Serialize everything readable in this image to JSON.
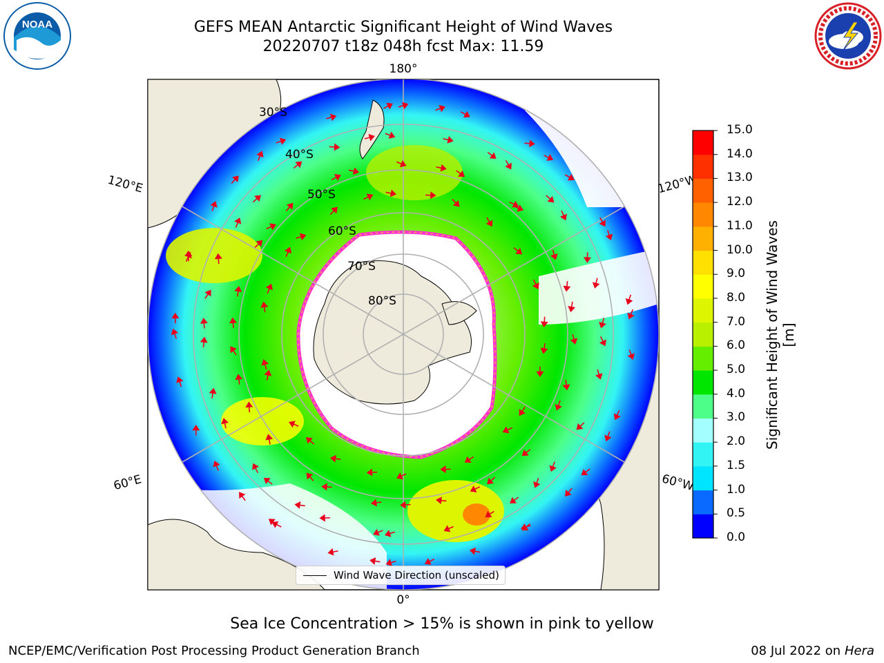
{
  "title": {
    "line1": "GEFS MEAN Antarctic Significant Height of Wind Waves",
    "line2": "20220707 t18z 048h fcst   Max: 11.59"
  },
  "map": {
    "projection": "south-polar-stereographic",
    "longitude_labels": {
      "top": "180°",
      "bottom": "0°",
      "upper_left": "120°E",
      "upper_right": "120°W",
      "lower_left": "60°E",
      "lower_right": "60°W"
    },
    "latitude_labels": [
      "30°S",
      "40°S",
      "50°S",
      "60°S",
      "70°S",
      "80°S"
    ],
    "legend_label": "Wind Wave Direction (unscaled)",
    "arrow_color": "#e8001c",
    "land_color": "#efebdc",
    "ice_edge_colors": [
      "#ff33cc",
      "#ffb347"
    ]
  },
  "colorbar": {
    "label": "Significant Height of Wind Waves [m]",
    "ticks": [
      "0.0",
      "0.5",
      "1.0",
      "1.5",
      "2.0",
      "3.0",
      "4.0",
      "5.0",
      "6.0",
      "7.0",
      "8.0",
      "9.0",
      "10.0",
      "11.0",
      "12.0",
      "13.0",
      "14.0",
      "15.0"
    ],
    "colors": [
      "#0000ff",
      "#0a6aff",
      "#00e5ff",
      "#33f4f4",
      "#a3ffff",
      "#4dff88",
      "#00e600",
      "#66ee00",
      "#b8f000",
      "#ddf500",
      "#ffff00",
      "#ffe000",
      "#ffb000",
      "#ff8800",
      "#ff6000",
      "#ff3000",
      "#ff0000"
    ]
  },
  "notes": {
    "ice": "Sea Ice Concentration > 15% is shown in pink to yellow",
    "footer_left": "NCEP/EMC/Verification Post Processing Product Generation Branch",
    "footer_date": "08 Jul 2022 on ",
    "footer_machine": "Hera"
  },
  "logos": {
    "noaa": {
      "text": "NOAA",
      "color": "#0a5ba8"
    },
    "nws": {
      "color": "#1a3fae",
      "ring_color": "#d91f26"
    }
  }
}
